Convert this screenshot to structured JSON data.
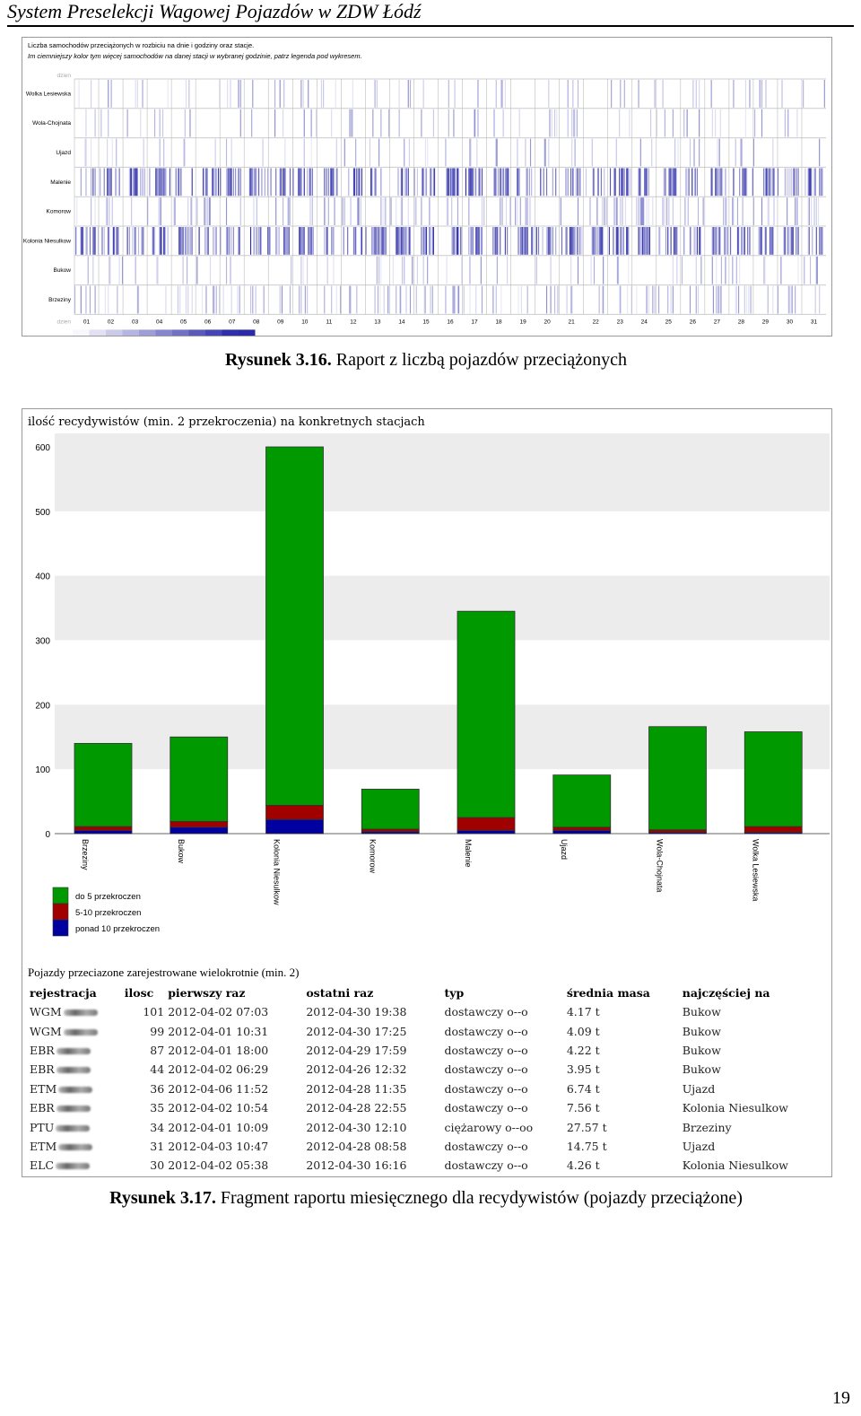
{
  "header": {
    "title": "System Preselekcji Wagowej Pojazdów w ZDW Łódź"
  },
  "figure1": {
    "line1": "Liczba samochodów przeciążonych w rozbiciu na dnie i godziny oraz stacje.",
    "line2": "Im ciemniejszy kolor tym więcej samochodów na danej stacji w wybranej godzinie, patrz legenda pod wykresem.",
    "day_label": "dzien",
    "stations": [
      "Wolka Lesiewska",
      "Wola-Chojnata",
      "Ujazd",
      "Malenie",
      "Komorow",
      "Kolonia Niesulkow",
      "Bukow",
      "Brzeziny"
    ],
    "days": [
      "01",
      "02",
      "03",
      "04",
      "05",
      "06",
      "07",
      "08",
      "09",
      "10",
      "11",
      "12",
      "13",
      "14",
      "15",
      "16",
      "17",
      "18",
      "19",
      "20",
      "21",
      "22",
      "23",
      "24",
      "25",
      "26",
      "27",
      "28",
      "29",
      "30",
      "31"
    ],
    "legend_ticks": [
      "0",
      "3",
      "6",
      "9",
      "12",
      "16",
      "19",
      "22",
      "25",
      "28"
    ],
    "color": "#2b2ba8"
  },
  "caption1": {
    "label": "Rysunek 3.16.",
    "text": " Raport z liczbą pojazdów przeciążonych"
  },
  "figure2": {
    "table_title": "Pojazdy przeciazone  zarejestrowane wielokrotnie (min. 2)",
    "table": {
      "headers": [
        "rejestracja",
        "ilosc",
        "pierwszy raz",
        "ostatni raz",
        "typ",
        "średnia masa",
        "najczęściej na"
      ],
      "rows": [
        [
          "WGM",
          "101",
          "2012-04-02 07:03",
          "2012-04-30 19:38",
          "dostawczy o--o",
          "4.17 t",
          "Bukow"
        ],
        [
          "WGM",
          "99",
          "2012-04-01 10:31",
          "2012-04-30 17:25",
          "dostawczy o--o",
          "4.09 t",
          "Bukow"
        ],
        [
          "EBR",
          "87",
          "2012-04-01 18:00",
          "2012-04-29 17:59",
          "dostawczy o--o",
          "4.22 t",
          "Bukow"
        ],
        [
          "EBR",
          "44",
          "2012-04-02 06:29",
          "2012-04-26 12:32",
          "dostawczy o--o",
          "3.95 t",
          "Bukow"
        ],
        [
          "ETM",
          "36",
          "2012-04-06 11:52",
          "2012-04-28 11:35",
          "dostawczy o--o",
          "6.74 t",
          "Ujazd"
        ],
        [
          "EBR",
          "35",
          "2012-04-02 10:54",
          "2012-04-28 22:55",
          "dostawczy o--o",
          "7.56 t",
          "Kolonia Niesulkow"
        ],
        [
          "PTU",
          "34",
          "2012-04-01 10:09",
          "2012-04-30 12:10",
          "ciężarowy o--oo",
          "27.57 t",
          "Brzeziny"
        ],
        [
          "ETM",
          "31",
          "2012-04-03 10:47",
          "2012-04-28 08:58",
          "dostawczy o--o",
          "14.75 t",
          "Ujazd"
        ],
        [
          "ELC",
          "30",
          "2012-04-02 05:38",
          "2012-04-30 16:16",
          "dostawczy o--o",
          "4.26 t",
          "Kolonia Niesulkow"
        ]
      ]
    }
  },
  "chart_data": {
    "type": "bar",
    "title": "ilość recydywistów (min. 2 przekroczenia) na konkretnych stacjach",
    "categories": [
      "Brzeziny",
      "Bukow",
      "Kolonia Niesulkow",
      "Komorow",
      "Malenie",
      "Ujazd",
      "Wola-Chojnata",
      "Wolka Lesiewska"
    ],
    "stacked": true,
    "series": [
      {
        "name": "ponad 10 przekroczen",
        "color": "#0000a0",
        "values": [
          5,
          10,
          22,
          3,
          5,
          5,
          2,
          2
        ]
      },
      {
        "name": "5-10 przekroczen",
        "color": "#a00000",
        "values": [
          6,
          9,
          22,
          4,
          20,
          5,
          4,
          9
        ]
      },
      {
        "name": "do 5 przekroczen",
        "color": "#009900",
        "values": [
          129,
          131,
          556,
          62,
          320,
          81,
          160,
          147
        ]
      }
    ],
    "yticks": [
      "0",
      "100",
      "200",
      "300",
      "400",
      "500",
      "600"
    ],
    "ylim": [
      0,
      620
    ],
    "grid": true,
    "legend": "bottom-left"
  },
  "caption2": {
    "label": "Rysunek 3.17.",
    "text": " Fragment raportu miesięcznego dla recydywistów (pojazdy przeciążone)"
  },
  "page_number": "19"
}
